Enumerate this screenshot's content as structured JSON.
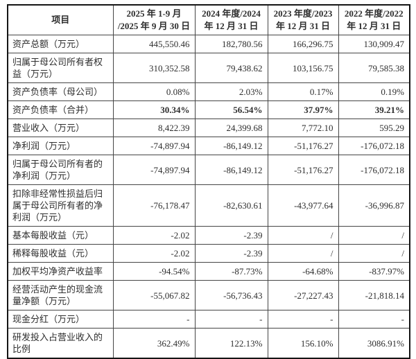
{
  "table": {
    "columns": [
      {
        "label": "项目"
      },
      {
        "label": "2025 年 1-9 月\n/2025 年 9 月 30 日"
      },
      {
        "label": "2024 年度/2024\n年 12 月 31 日"
      },
      {
        "label": "2023 年度/2023\n年 12 月 31 日"
      },
      {
        "label": "2022 年度/2022\n年 12 月 31 日"
      }
    ],
    "rows": [
      {
        "label": "资产总额（万元）",
        "values": [
          "445,550.46",
          "182,780.56",
          "166,296.75",
          "130,909.47"
        ]
      },
      {
        "label": "归属于母公司所有者权益（万元）",
        "values": [
          "310,352.58",
          "79,438.62",
          "103,156.75",
          "79,585.38"
        ]
      },
      {
        "label": "资产负债率（母公司）",
        "values": [
          "0.08%",
          "2.03%",
          "0.17%",
          "0.19%"
        ]
      },
      {
        "label": "资产负债率（合并）",
        "values": [
          "30.34%",
          "56.54%",
          "37.97%",
          "39.21%"
        ],
        "bold_values": true
      },
      {
        "label": "营业收入（万元）",
        "values": [
          "8,422.39",
          "24,399.68",
          "7,772.10",
          "595.29"
        ]
      },
      {
        "label": "净利润（万元）",
        "values": [
          "-74,897.94",
          "-86,149.12",
          "-51,176.27",
          "-176,072.18"
        ]
      },
      {
        "label": "归属于母公司所有者的净利润（万元）",
        "values": [
          "-74,897.94",
          "-86,149.12",
          "-51,176.27",
          "-176,072.18"
        ]
      },
      {
        "label": "扣除非经常性损益后归属于母公司所有者的净利润（万元）",
        "values": [
          "-76,178.47",
          "-82,630.61",
          "-43,977.64",
          "-36,996.87"
        ]
      },
      {
        "label": "基本每股收益（元）",
        "values": [
          "-2.02",
          "-2.39",
          "/",
          "/"
        ]
      },
      {
        "label": "稀释每股收益（元）",
        "values": [
          "-2.02",
          "-2.39",
          "/",
          "/"
        ]
      },
      {
        "label": "加权平均净资产收益率",
        "values": [
          "-94.54%",
          "-87.73%",
          "-64.68%",
          "-837.97%"
        ]
      },
      {
        "label": "经营活动产生的现金流量净额（万元）",
        "values": [
          "-55,067.82",
          "-56,736.43",
          "-27,227.43",
          "-21,818.14"
        ]
      },
      {
        "label": "现金分红（万元）",
        "values": [
          "-",
          "-",
          "-",
          "-"
        ]
      },
      {
        "label": "研发投入占营业收入的比例",
        "values": [
          "362.49%",
          "122.13%",
          "156.10%",
          "3086.91%"
        ]
      }
    ]
  }
}
